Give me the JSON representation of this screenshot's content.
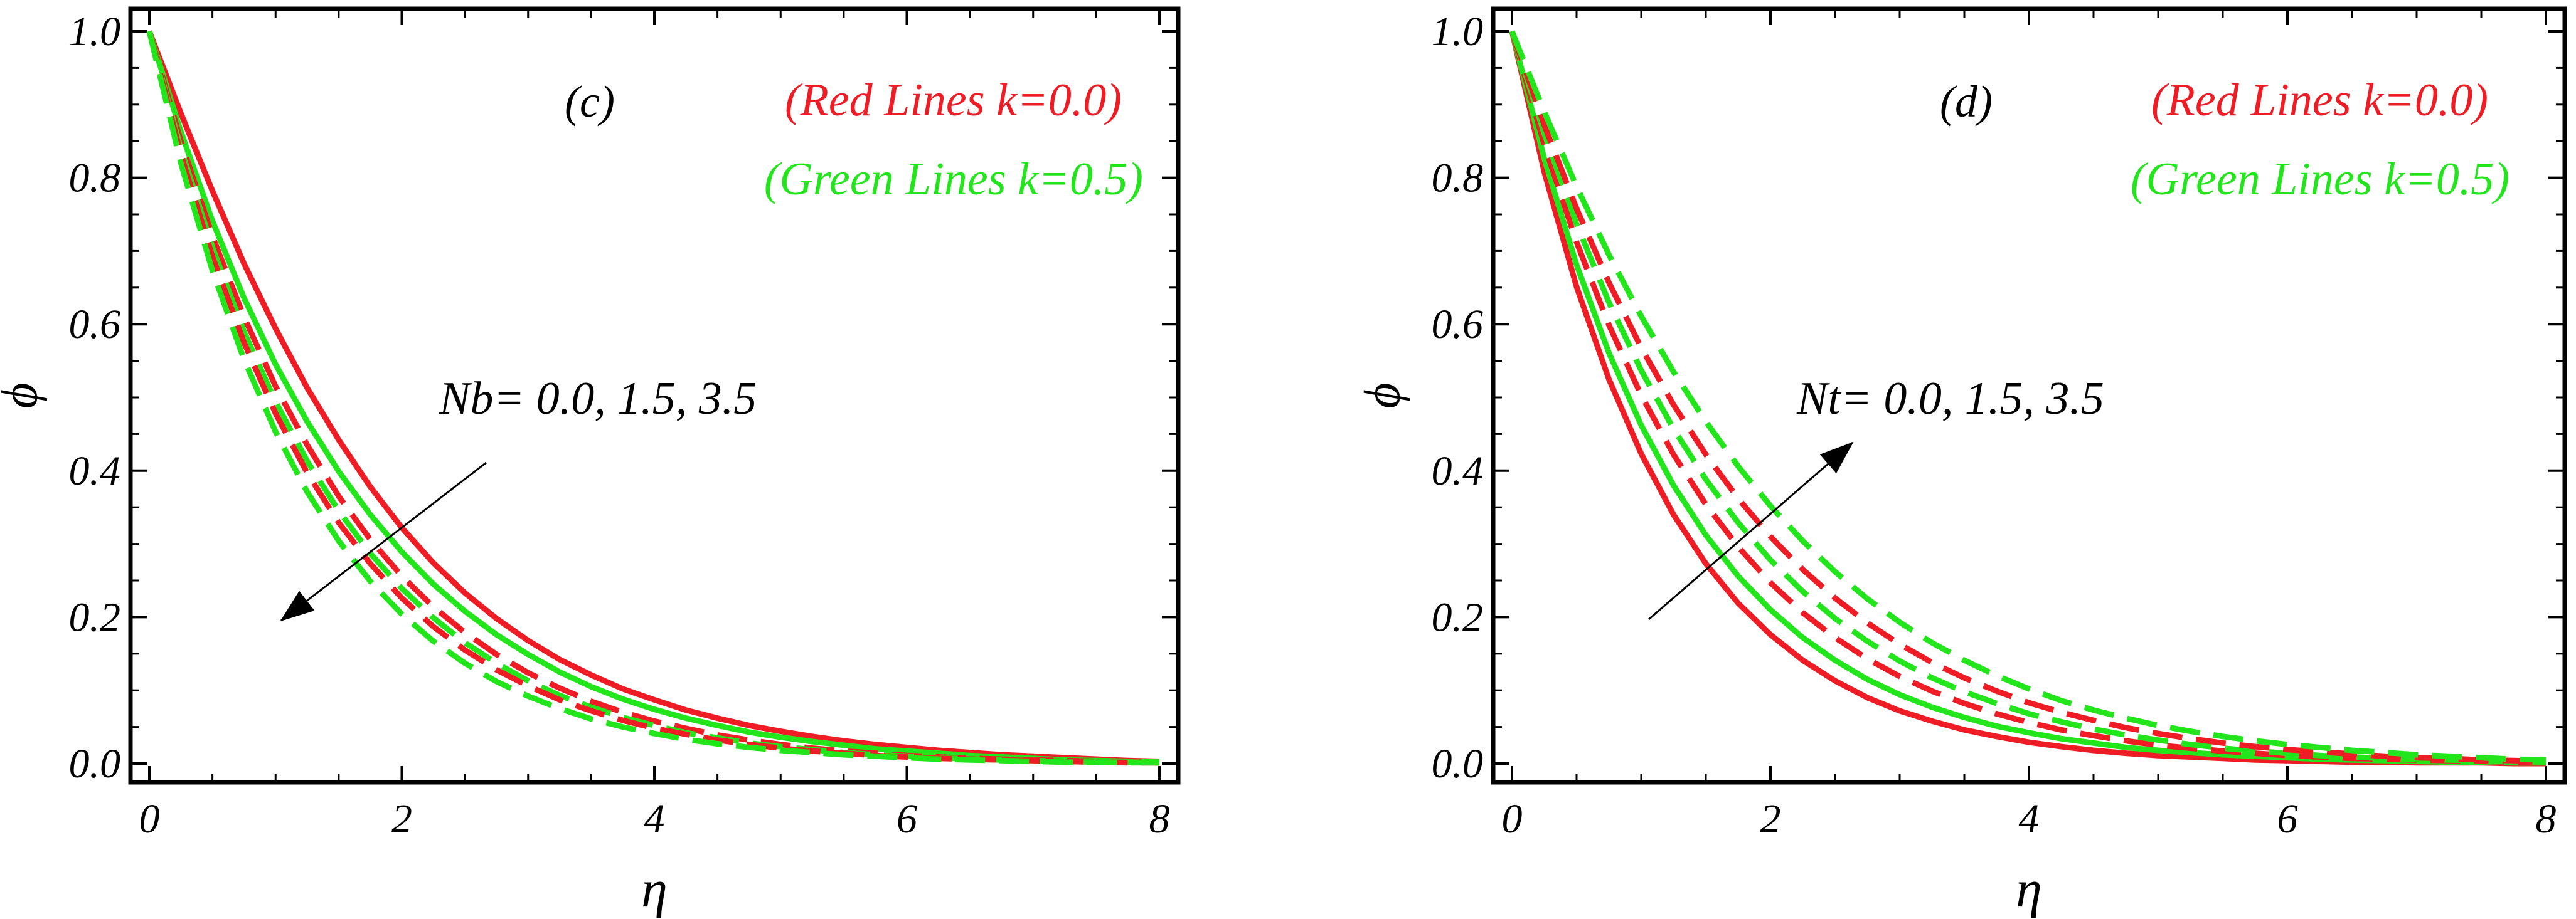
{
  "chart_data": [
    {
      "type": "line",
      "panel_label": "(c)",
      "xlabel": "η",
      "ylabel": "ϕ",
      "xlim": [
        0,
        8
      ],
      "ylim": [
        0,
        1
      ],
      "x_ticks": [
        "0",
        "2",
        "4",
        "6",
        "8"
      ],
      "y_ticks": [
        "0.0",
        "0.2",
        "0.4",
        "0.6",
        "0.8",
        "1.0"
      ],
      "grid": false,
      "legend": {
        "red_text": "(Red Lines k=0.0)",
        "green_text": "(Green Lines k=0.5)",
        "placement": "top-right"
      },
      "annotation": {
        "text": "Nb= 0.0, 1.5, 3.5",
        "arrow_direction": "down-left"
      },
      "colors": {
        "red": "#ee1c25",
        "green": "#22e51c"
      },
      "x": [
        0,
        0.25,
        0.5,
        0.75,
        1,
        1.25,
        1.5,
        1.75,
        2,
        2.25,
        2.5,
        2.75,
        3,
        3.25,
        3.5,
        3.75,
        4,
        4.25,
        4.5,
        4.75,
        5,
        5.25,
        5.5,
        5.75,
        6,
        6.25,
        6.5,
        6.75,
        7,
        7.25,
        7.5,
        7.75,
        8
      ],
      "series": [
        {
          "color": "red",
          "style": "solid",
          "values": [
            1,
            0.888,
            0.782,
            0.683,
            0.594,
            0.513,
            0.442,
            0.378,
            0.322,
            0.274,
            0.233,
            0.198,
            0.168,
            0.142,
            0.121,
            0.102,
            0.087,
            0.073,
            0.062,
            0.052,
            0.044,
            0.037,
            0.031,
            0.026,
            0.022,
            0.018,
            0.015,
            0.012,
            0.01,
            0.008,
            0.006,
            0.004,
            0.003
          ]
        },
        {
          "color": "green",
          "style": "solid",
          "values": [
            1,
            0.863,
            0.741,
            0.636,
            0.545,
            0.467,
            0.399,
            0.34,
            0.289,
            0.245,
            0.208,
            0.176,
            0.149,
            0.125,
            0.105,
            0.088,
            0.074,
            0.062,
            0.052,
            0.043,
            0.036,
            0.03,
            0.025,
            0.02,
            0.017,
            0.014,
            0.011,
            0.009,
            0.007,
            0.005,
            0.004,
            0.003,
            0.002
          ]
        },
        {
          "color": "red",
          "style": "dashed",
          "values": [
            1,
            0.85,
            0.72,
            0.61,
            0.515,
            0.435,
            0.365,
            0.306,
            0.256,
            0.214,
            0.179,
            0.149,
            0.124,
            0.103,
            0.085,
            0.07,
            0.058,
            0.048,
            0.039,
            0.032,
            0.026,
            0.021,
            0.017,
            0.014,
            0.011,
            0.009,
            0.007,
            0.006,
            0.005,
            0.004,
            0.003,
            0.002,
            0.001
          ]
        },
        {
          "color": "green",
          "style": "dashed",
          "values": [
            1,
            0.84,
            0.705,
            0.59,
            0.494,
            0.413,
            0.345,
            0.287,
            0.239,
            0.199,
            0.165,
            0.137,
            0.113,
            0.093,
            0.077,
            0.063,
            0.052,
            0.042,
            0.035,
            0.028,
            0.023,
            0.019,
            0.015,
            0.012,
            0.01,
            0.008,
            0.006,
            0.005,
            0.004,
            0.003,
            0.002,
            0.002,
            0.001
          ]
        },
        {
          "color": "red",
          "style": "dashed",
          "values": [
            1,
            0.832,
            0.692,
            0.575,
            0.478,
            0.397,
            0.329,
            0.273,
            0.226,
            0.187,
            0.155,
            0.128,
            0.106,
            0.087,
            0.072,
            0.059,
            0.048,
            0.04,
            0.032,
            0.026,
            0.021,
            0.017,
            0.014,
            0.011,
            0.009,
            0.007,
            0.006,
            0.005,
            0.004,
            0.003,
            0.002,
            0.001,
            0.001
          ]
        },
        {
          "color": "green",
          "style": "dashed",
          "values": [
            1,
            0.82,
            0.673,
            0.552,
            0.453,
            0.371,
            0.304,
            0.249,
            0.204,
            0.167,
            0.137,
            0.112,
            0.092,
            0.075,
            0.061,
            0.05,
            0.041,
            0.033,
            0.027,
            0.022,
            0.018,
            0.015,
            0.012,
            0.01,
            0.008,
            0.006,
            0.005,
            0.004,
            0.003,
            0.002,
            0.002,
            0.001,
            0.001
          ]
        }
      ]
    },
    {
      "type": "line",
      "panel_label": "(d)",
      "xlabel": "η",
      "ylabel": "ϕ",
      "xlim": [
        0,
        8
      ],
      "ylim": [
        0,
        1
      ],
      "x_ticks": [
        "0",
        "2",
        "4",
        "6",
        "8"
      ],
      "y_ticks": [
        "0.0",
        "0.2",
        "0.4",
        "0.6",
        "0.8",
        "1.0"
      ],
      "grid": false,
      "legend": {
        "red_text": "(Red Lines k=0.0)",
        "green_text": "(Green Lines k=0.5)",
        "placement": "top-right"
      },
      "annotation": {
        "text": "Nt= 0.0, 1.5, 3.5",
        "arrow_direction": "up-right"
      },
      "colors": {
        "red": "#ee1c25",
        "green": "#22e51c"
      },
      "x": [
        0,
        0.25,
        0.5,
        0.75,
        1,
        1.25,
        1.5,
        1.75,
        2,
        2.25,
        2.5,
        2.75,
        3,
        3.25,
        3.5,
        3.75,
        4,
        4.25,
        4.5,
        4.75,
        5,
        5.25,
        5.5,
        5.75,
        6,
        6.25,
        6.5,
        6.75,
        7,
        7.25,
        7.5,
        7.75,
        8
      ],
      "series": [
        {
          "color": "red",
          "style": "solid",
          "values": [
            1,
            0.808,
            0.651,
            0.525,
            0.423,
            0.34,
            0.273,
            0.219,
            0.176,
            0.141,
            0.113,
            0.09,
            0.072,
            0.058,
            0.046,
            0.037,
            0.029,
            0.023,
            0.018,
            0.014,
            0.011,
            0.009,
            0.007,
            0.005,
            0.004,
            0.003,
            0.002,
            0.002,
            0.001,
            0.001,
            0.001,
            0,
            0
          ]
        },
        {
          "color": "green",
          "style": "solid",
          "values": [
            1,
            0.826,
            0.681,
            0.561,
            0.462,
            0.38,
            0.312,
            0.256,
            0.21,
            0.172,
            0.141,
            0.115,
            0.094,
            0.077,
            0.063,
            0.051,
            0.042,
            0.034,
            0.028,
            0.022,
            0.018,
            0.015,
            0.012,
            0.01,
            0.008,
            0.006,
            0.005,
            0.004,
            0.003,
            0.002,
            0.002,
            0.001,
            0.001
          ]
        },
        {
          "color": "red",
          "style": "dashed",
          "values": [
            1,
            0.845,
            0.712,
            0.599,
            0.503,
            0.422,
            0.354,
            0.296,
            0.247,
            0.206,
            0.172,
            0.143,
            0.119,
            0.099,
            0.082,
            0.068,
            0.056,
            0.046,
            0.038,
            0.031,
            0.025,
            0.021,
            0.017,
            0.014,
            0.011,
            0.009,
            0.007,
            0.006,
            0.005,
            0.004,
            0.003,
            0.002,
            0.002
          ]
        },
        {
          "color": "green",
          "style": "dashed",
          "values": [
            1,
            0.86,
            0.737,
            0.63,
            0.537,
            0.457,
            0.388,
            0.329,
            0.278,
            0.235,
            0.198,
            0.167,
            0.14,
            0.117,
            0.098,
            0.082,
            0.068,
            0.057,
            0.047,
            0.039,
            0.032,
            0.026,
            0.021,
            0.017,
            0.014,
            0.011,
            0.009,
            0.007,
            0.006,
            0.005,
            0.004,
            0.003,
            0.002
          ]
        },
        {
          "color": "red",
          "style": "dashed",
          "values": [
            1,
            0.872,
            0.758,
            0.657,
            0.568,
            0.49,
            0.422,
            0.362,
            0.31,
            0.265,
            0.226,
            0.192,
            0.163,
            0.138,
            0.117,
            0.099,
            0.083,
            0.07,
            0.059,
            0.049,
            0.041,
            0.034,
            0.028,
            0.023,
            0.019,
            0.016,
            0.013,
            0.01,
            0.008,
            0.007,
            0.005,
            0.004,
            0.003
          ]
        },
        {
          "color": "green",
          "style": "dashed",
          "values": [
            1,
            0.89,
            0.788,
            0.695,
            0.611,
            0.535,
            0.467,
            0.406,
            0.352,
            0.304,
            0.262,
            0.225,
            0.193,
            0.165,
            0.141,
            0.12,
            0.102,
            0.086,
            0.073,
            0.062,
            0.052,
            0.044,
            0.037,
            0.031,
            0.026,
            0.022,
            0.018,
            0.015,
            0.012,
            0.01,
            0.008,
            0.006,
            0.005
          ]
        }
      ]
    }
  ]
}
